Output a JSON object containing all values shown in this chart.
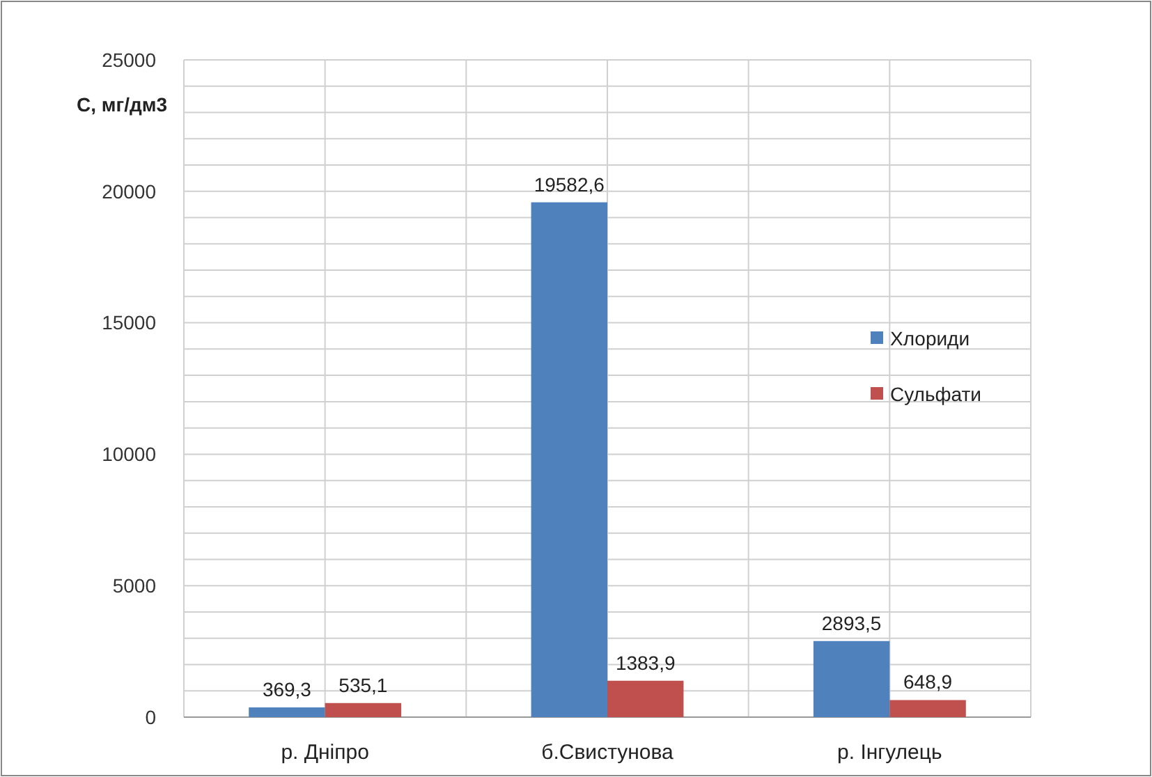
{
  "chart_data": {
    "type": "bar",
    "ylabel": "C, мг/дм3",
    "categories": [
      "р. Дніпро",
      "б.Свистунова",
      "р. Інгулець"
    ],
    "series": [
      {
        "name": "Хлориди",
        "color": "#4f81bd",
        "values": [
          369.3,
          19582.6,
          2893.5
        ],
        "value_labels": [
          "369,3",
          "19582,6",
          "2893,5"
        ]
      },
      {
        "name": "Сульфати",
        "color": "#c0504d",
        "values": [
          535.1,
          1383.9,
          648.9
        ],
        "value_labels": [
          "535,1",
          "1383,9",
          "648,9"
        ]
      }
    ],
    "ylim": [
      0,
      25000
    ],
    "yticks": [
      0,
      {
        "value": 1000,
        "label": null
      },
      {
        "value": 2000,
        "label": null
      },
      {
        "value": 3000,
        "label": null
      },
      {
        "value": 4000,
        "label": null
      },
      5000,
      {
        "value": 6000,
        "label": null
      },
      {
        "value": 7000,
        "label": null
      },
      {
        "value": 8000,
        "label": null
      },
      {
        "value": 9000,
        "label": null
      },
      10000,
      {
        "value": 11000,
        "label": null
      },
      {
        "value": 12000,
        "label": null
      },
      {
        "value": 13000,
        "label": null
      },
      {
        "value": 14000,
        "label": null
      },
      15000,
      {
        "value": 16000,
        "label": null
      },
      {
        "value": 17000,
        "label": null
      },
      {
        "value": 18000,
        "label": null
      },
      {
        "value": 19000,
        "label": null
      },
      20000,
      {
        "value": 21000,
        "label": null
      },
      {
        "value": 22000,
        "label": null
      },
      {
        "value": 23000,
        "label": null
      },
      {
        "value": 24000,
        "label": null
      },
      25000
    ],
    "grid": true,
    "legend": "right"
  }
}
